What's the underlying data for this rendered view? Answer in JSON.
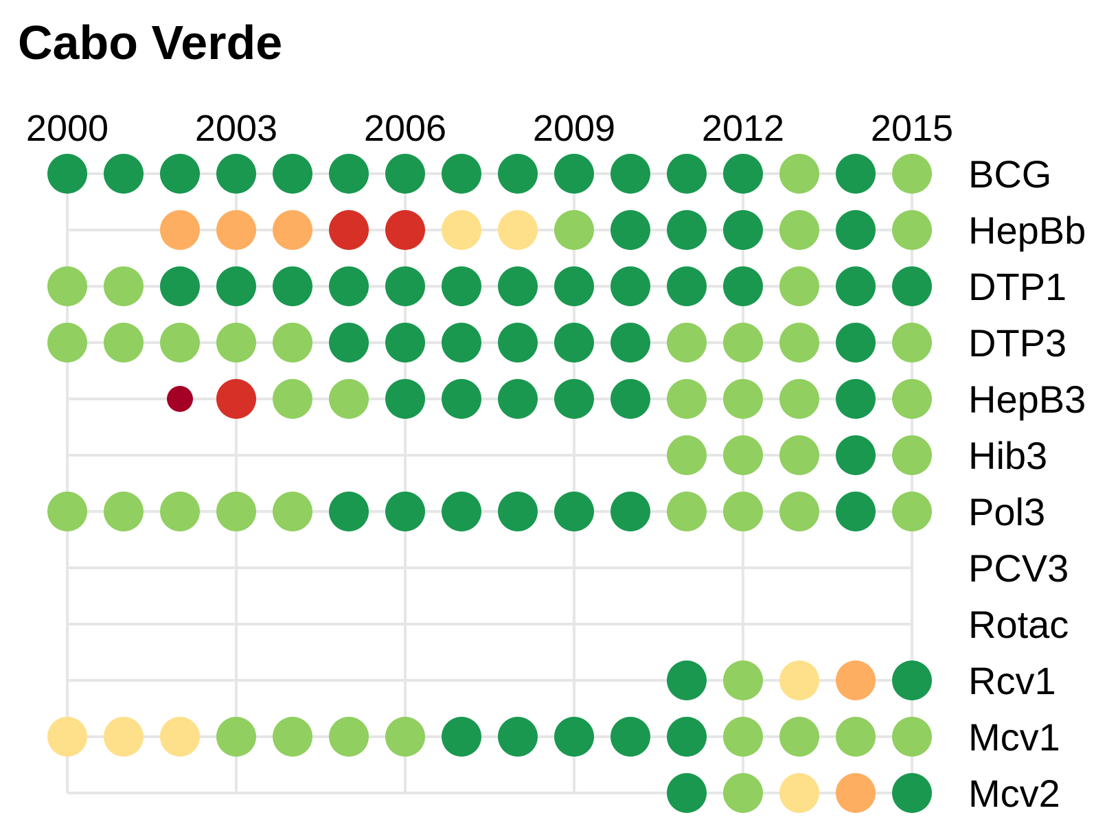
{
  "chart_data": {
    "type": "scatter",
    "title": "Cabo Verde",
    "x": [
      2000,
      2001,
      2002,
      2003,
      2004,
      2005,
      2006,
      2007,
      2008,
      2009,
      2010,
      2011,
      2012,
      2013,
      2014,
      2015
    ],
    "x_ticks": [
      "2000",
      "2003",
      "2006",
      "2009",
      "2012",
      "2015"
    ],
    "categories": [
      "BCG",
      "HepBb",
      "DTP1",
      "DTP3",
      "HepB3",
      "Hib3",
      "Pol3",
      "PCV3",
      "Rotac",
      "Rcv1",
      "Mcv1",
      "Mcv2"
    ],
    "color_levels": {
      "dark-green": "#1a9850",
      "light-green": "#91cf60",
      "pale-yellow": "#fee08b",
      "orange": "#fdae61",
      "red": "#d73027",
      "dark-red": "#a50026"
    },
    "series": [
      {
        "category": "BCG",
        "start": 2000,
        "end": 2015,
        "points": [
          {
            "x": 2000,
            "level": "dark-green"
          },
          {
            "x": 2001,
            "level": "dark-green"
          },
          {
            "x": 2002,
            "level": "dark-green"
          },
          {
            "x": 2003,
            "level": "dark-green"
          },
          {
            "x": 2004,
            "level": "dark-green"
          },
          {
            "x": 2005,
            "level": "dark-green"
          },
          {
            "x": 2006,
            "level": "dark-green"
          },
          {
            "x": 2007,
            "level": "dark-green"
          },
          {
            "x": 2008,
            "level": "dark-green"
          },
          {
            "x": 2009,
            "level": "dark-green"
          },
          {
            "x": 2010,
            "level": "dark-green"
          },
          {
            "x": 2011,
            "level": "dark-green"
          },
          {
            "x": 2012,
            "level": "dark-green"
          },
          {
            "x": 2013,
            "level": "light-green"
          },
          {
            "x": 2014,
            "level": "dark-green"
          },
          {
            "x": 2015,
            "level": "light-green"
          }
        ]
      },
      {
        "category": "HepBb",
        "start": 2000,
        "end": 2015,
        "points": [
          {
            "x": 2002,
            "level": "orange"
          },
          {
            "x": 2003,
            "level": "orange"
          },
          {
            "x": 2004,
            "level": "orange"
          },
          {
            "x": 2005,
            "level": "red"
          },
          {
            "x": 2006,
            "level": "red"
          },
          {
            "x": 2007,
            "level": "pale-yellow"
          },
          {
            "x": 2008,
            "level": "pale-yellow"
          },
          {
            "x": 2009,
            "level": "light-green"
          },
          {
            "x": 2010,
            "level": "dark-green"
          },
          {
            "x": 2011,
            "level": "dark-green"
          },
          {
            "x": 2012,
            "level": "dark-green"
          },
          {
            "x": 2013,
            "level": "light-green"
          },
          {
            "x": 2014,
            "level": "dark-green"
          },
          {
            "x": 2015,
            "level": "light-green"
          }
        ]
      },
      {
        "category": "DTP1",
        "start": 2000,
        "end": 2015,
        "points": [
          {
            "x": 2000,
            "level": "light-green"
          },
          {
            "x": 2001,
            "level": "light-green"
          },
          {
            "x": 2002,
            "level": "dark-green"
          },
          {
            "x": 2003,
            "level": "dark-green"
          },
          {
            "x": 2004,
            "level": "dark-green"
          },
          {
            "x": 2005,
            "level": "dark-green"
          },
          {
            "x": 2006,
            "level": "dark-green"
          },
          {
            "x": 2007,
            "level": "dark-green"
          },
          {
            "x": 2008,
            "level": "dark-green"
          },
          {
            "x": 2009,
            "level": "dark-green"
          },
          {
            "x": 2010,
            "level": "dark-green"
          },
          {
            "x": 2011,
            "level": "dark-green"
          },
          {
            "x": 2012,
            "level": "dark-green"
          },
          {
            "x": 2013,
            "level": "light-green"
          },
          {
            "x": 2014,
            "level": "dark-green"
          },
          {
            "x": 2015,
            "level": "dark-green"
          }
        ]
      },
      {
        "category": "DTP3",
        "start": 2000,
        "end": 2015,
        "points": [
          {
            "x": 2000,
            "level": "light-green"
          },
          {
            "x": 2001,
            "level": "light-green"
          },
          {
            "x": 2002,
            "level": "light-green"
          },
          {
            "x": 2003,
            "level": "light-green"
          },
          {
            "x": 2004,
            "level": "light-green"
          },
          {
            "x": 2005,
            "level": "dark-green"
          },
          {
            "x": 2006,
            "level": "dark-green"
          },
          {
            "x": 2007,
            "level": "dark-green"
          },
          {
            "x": 2008,
            "level": "dark-green"
          },
          {
            "x": 2009,
            "level": "dark-green"
          },
          {
            "x": 2010,
            "level": "dark-green"
          },
          {
            "x": 2011,
            "level": "light-green"
          },
          {
            "x": 2012,
            "level": "light-green"
          },
          {
            "x": 2013,
            "level": "light-green"
          },
          {
            "x": 2014,
            "level": "dark-green"
          },
          {
            "x": 2015,
            "level": "light-green"
          }
        ]
      },
      {
        "category": "HepB3",
        "start": 2000,
        "end": 2015,
        "points": [
          {
            "x": 2002,
            "level": "dark-red",
            "small": true
          },
          {
            "x": 2003,
            "level": "red"
          },
          {
            "x": 2004,
            "level": "light-green"
          },
          {
            "x": 2005,
            "level": "light-green"
          },
          {
            "x": 2006,
            "level": "dark-green"
          },
          {
            "x": 2007,
            "level": "dark-green"
          },
          {
            "x": 2008,
            "level": "dark-green"
          },
          {
            "x": 2009,
            "level": "dark-green"
          },
          {
            "x": 2010,
            "level": "dark-green"
          },
          {
            "x": 2011,
            "level": "light-green"
          },
          {
            "x": 2012,
            "level": "light-green"
          },
          {
            "x": 2013,
            "level": "light-green"
          },
          {
            "x": 2014,
            "level": "dark-green"
          },
          {
            "x": 2015,
            "level": "light-green"
          }
        ]
      },
      {
        "category": "Hib3",
        "start": 2000,
        "end": 2015,
        "points": [
          {
            "x": 2011,
            "level": "light-green"
          },
          {
            "x": 2012,
            "level": "light-green"
          },
          {
            "x": 2013,
            "level": "light-green"
          },
          {
            "x": 2014,
            "level": "dark-green"
          },
          {
            "x": 2015,
            "level": "light-green"
          }
        ]
      },
      {
        "category": "Pol3",
        "start": 2000,
        "end": 2015,
        "points": [
          {
            "x": 2000,
            "level": "light-green"
          },
          {
            "x": 2001,
            "level": "light-green"
          },
          {
            "x": 2002,
            "level": "light-green"
          },
          {
            "x": 2003,
            "level": "light-green"
          },
          {
            "x": 2004,
            "level": "light-green"
          },
          {
            "x": 2005,
            "level": "dark-green"
          },
          {
            "x": 2006,
            "level": "dark-green"
          },
          {
            "x": 2007,
            "level": "dark-green"
          },
          {
            "x": 2008,
            "level": "dark-green"
          },
          {
            "x": 2009,
            "level": "dark-green"
          },
          {
            "x": 2010,
            "level": "dark-green"
          },
          {
            "x": 2011,
            "level": "light-green"
          },
          {
            "x": 2012,
            "level": "light-green"
          },
          {
            "x": 2013,
            "level": "light-green"
          },
          {
            "x": 2014,
            "level": "dark-green"
          },
          {
            "x": 2015,
            "level": "light-green"
          }
        ]
      },
      {
        "category": "PCV3",
        "start": 2000,
        "end": 2015,
        "points": []
      },
      {
        "category": "Rotac",
        "start": 2000,
        "end": 2015,
        "points": []
      },
      {
        "category": "Rcv1",
        "start": 2000,
        "end": 2015,
        "points": [
          {
            "x": 2011,
            "level": "dark-green"
          },
          {
            "x": 2012,
            "level": "light-green"
          },
          {
            "x": 2013,
            "level": "pale-yellow"
          },
          {
            "x": 2014,
            "level": "orange"
          },
          {
            "x": 2015,
            "level": "dark-green"
          }
        ]
      },
      {
        "category": "Mcv1",
        "start": 2000,
        "end": 2015,
        "points": [
          {
            "x": 2000,
            "level": "pale-yellow"
          },
          {
            "x": 2001,
            "level": "pale-yellow"
          },
          {
            "x": 2002,
            "level": "pale-yellow"
          },
          {
            "x": 2003,
            "level": "light-green"
          },
          {
            "x": 2004,
            "level": "light-green"
          },
          {
            "x": 2005,
            "level": "light-green"
          },
          {
            "x": 2006,
            "level": "light-green"
          },
          {
            "x": 2007,
            "level": "dark-green"
          },
          {
            "x": 2008,
            "level": "dark-green"
          },
          {
            "x": 2009,
            "level": "dark-green"
          },
          {
            "x": 2010,
            "level": "dark-green"
          },
          {
            "x": 2011,
            "level": "dark-green"
          },
          {
            "x": 2012,
            "level": "light-green"
          },
          {
            "x": 2013,
            "level": "light-green"
          },
          {
            "x": 2014,
            "level": "light-green"
          },
          {
            "x": 2015,
            "level": "light-green"
          }
        ]
      },
      {
        "category": "Mcv2",
        "start": 2000,
        "end": 2015,
        "points": [
          {
            "x": 2011,
            "level": "dark-green"
          },
          {
            "x": 2012,
            "level": "light-green"
          },
          {
            "x": 2013,
            "level": "pale-yellow"
          },
          {
            "x": 2014,
            "level": "orange"
          },
          {
            "x": 2015,
            "level": "dark-green"
          }
        ]
      }
    ],
    "grid": true,
    "grid_color": "#e6e6e6",
    "legend": "none"
  }
}
